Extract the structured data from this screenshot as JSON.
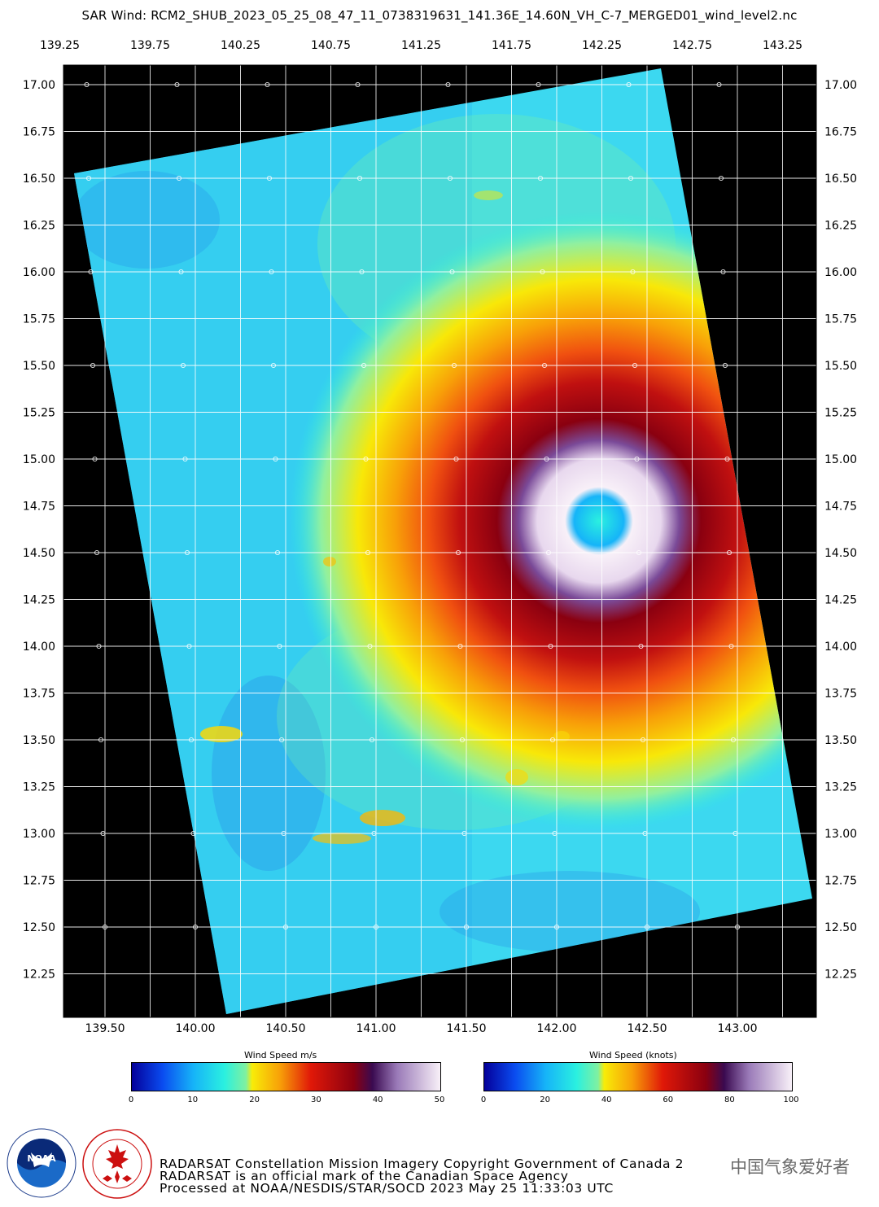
{
  "title": "SAR Wind: RCM2_SHUB_2023_05_25_08_47_11_0738319631_141.36E_14.60N_VH_C-7_MERGED01_wind_level2.nc",
  "top_lon_ticks": [
    "139.25",
    "139.75",
    "140.25",
    "140.75",
    "141.25",
    "141.75",
    "142.25",
    "142.75",
    "143.25"
  ],
  "bottom_lon_ticks": [
    "139.50",
    "140.00",
    "140.50",
    "141.00",
    "141.50",
    "142.00",
    "142.50",
    "143.00"
  ],
  "lat_ticks": [
    "17.00",
    "16.75",
    "16.50",
    "16.25",
    "16.00",
    "15.75",
    "15.50",
    "15.25",
    "15.00",
    "14.75",
    "14.50",
    "14.25",
    "14.00",
    "13.75",
    "13.50",
    "13.25",
    "13.00",
    "12.75",
    "12.50",
    "12.25"
  ],
  "colorbars": [
    {
      "label": "Wind Speed  m/s",
      "ticks": [
        "0",
        "10",
        "20",
        "30",
        "40",
        "50"
      ],
      "max": 50
    },
    {
      "label": "Wind Speed  (knots)",
      "ticks": [
        "0",
        "20",
        "40",
        "60",
        "80",
        "100"
      ],
      "max": 100
    }
  ],
  "colormap": [
    "#04009a",
    "#0a4cf0",
    "#16b4f8",
    "#2af0e0",
    "#60f4a8",
    "#f8ec08",
    "#f89c08",
    "#e01808",
    "#8a0010",
    "#3a0a50",
    "#c8aad8",
    "#f8f0f8"
  ],
  "footer": {
    "line1": "RADARSAT Constellation Mission Imagery Copyright Government of Canada 2",
    "line2": "RADARSAT is an official mark of the Canadian Space Agency",
    "line3": "Processed at NOAA/NESDIS/STAR/SOCD 2023 May 25 11:33:03 UTC"
  },
  "logos": {
    "noaa_text": "NOAA",
    "noaa_ring": "NATIONAL OCEANIC AND ATMOSPHERIC ADMINISTRATION · U.S. DEPARTMENT OF COMMERCE",
    "csa_ring": "CANADIAN SPACE AGENCY · AGENCE SPATIALE CANADIENNE"
  },
  "watermark": "中国气象爱好者",
  "storm_center": {
    "lon": 142.25,
    "lat": 14.7
  }
}
